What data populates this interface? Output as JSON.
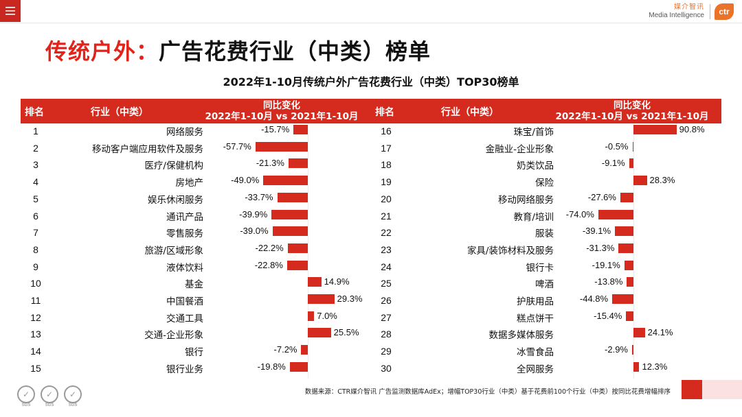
{
  "brand": {
    "cn": "媒介智讯",
    "en": "Media Intelligence",
    "logo": "ctr"
  },
  "page_title": {
    "highlight": "传统户外：",
    "rest": "广告花费行业（中类）榜单"
  },
  "table_headers": {
    "rank": "排名",
    "industry": "行业（中类）",
    "change_line1": "同比变化",
    "change_line2": "2022年1-10月 vs 2021年1-10月"
  },
  "chart_data": {
    "type": "bar",
    "title": "2022年1-10月传统户外广告花费行业（中类）TOP30榜单",
    "unit": "%",
    "columns": [
      {
        "rows": [
          {
            "rank": "1",
            "industry": "网络服务",
            "value": -15.7,
            "label": "-15.7%"
          },
          {
            "rank": "2",
            "industry": "移动客户端应用软件及服务",
            "value": -57.7,
            "label": "-57.7%"
          },
          {
            "rank": "3",
            "industry": "医疗/保健机构",
            "value": -21.3,
            "label": "-21.3%"
          },
          {
            "rank": "4",
            "industry": "房地产",
            "value": -49.0,
            "label": "-49.0%"
          },
          {
            "rank": "5",
            "industry": "娱乐休闲服务",
            "value": -33.7,
            "label": "-33.7%"
          },
          {
            "rank": "6",
            "industry": "通讯产品",
            "value": -39.9,
            "label": "-39.9%"
          },
          {
            "rank": "7",
            "industry": "零售服务",
            "value": -39.0,
            "label": "-39.0%"
          },
          {
            "rank": "8",
            "industry": "旅游/区域形象",
            "value": -22.2,
            "label": "-22.2%"
          },
          {
            "rank": "9",
            "industry": "液体饮料",
            "value": -22.8,
            "label": "-22.8%"
          },
          {
            "rank": "10",
            "industry": "基金",
            "value": 14.9,
            "label": "14.9%"
          },
          {
            "rank": "11",
            "industry": "中国餐酒",
            "value": 29.3,
            "label": "29.3%"
          },
          {
            "rank": "12",
            "industry": "交通工具",
            "value": 7.0,
            "label": "7.0%"
          },
          {
            "rank": "13",
            "industry": "交通-企业形象",
            "value": 25.5,
            "label": "25.5%"
          },
          {
            "rank": "14",
            "industry": "银行",
            "value": -7.2,
            "label": "-7.2%"
          },
          {
            "rank": "15",
            "industry": "银行业务",
            "value": -19.8,
            "label": "-19.8%"
          }
        ]
      },
      {
        "rows": [
          {
            "rank": "16",
            "industry": "珠宝/首饰",
            "value": 90.8,
            "label": "90.8%"
          },
          {
            "rank": "17",
            "industry": "金融业-企业形象",
            "value": -0.5,
            "label": "-0.5%"
          },
          {
            "rank": "18",
            "industry": "奶类饮品",
            "value": -9.1,
            "label": "-9.1%"
          },
          {
            "rank": "19",
            "industry": "保险",
            "value": 28.3,
            "label": "28.3%"
          },
          {
            "rank": "20",
            "industry": "移动网络服务",
            "value": -27.6,
            "label": "-27.6%"
          },
          {
            "rank": "21",
            "industry": "教育/培训",
            "value": -74.0,
            "label": "-74.0%"
          },
          {
            "rank": "22",
            "industry": "服装",
            "value": -39.1,
            "label": "-39.1%"
          },
          {
            "rank": "23",
            "industry": "家具/装饰材料及服务",
            "value": -31.3,
            "label": "-31.3%"
          },
          {
            "rank": "24",
            "industry": "银行卡",
            "value": -19.1,
            "label": "-19.1%"
          },
          {
            "rank": "25",
            "industry": "啤酒",
            "value": -13.8,
            "label": "-13.8%"
          },
          {
            "rank": "26",
            "industry": "护肤用品",
            "value": -44.8,
            "label": "-44.8%"
          },
          {
            "rank": "27",
            "industry": "糕点饼干",
            "value": -15.4,
            "label": "-15.4%"
          },
          {
            "rank": "28",
            "industry": "数据多媒体服务",
            "value": 24.1,
            "label": "24.1%"
          },
          {
            "rank": "29",
            "industry": "冰雪食品",
            "value": -2.9,
            "label": "-2.9%"
          },
          {
            "rank": "30",
            "industry": "全网服务",
            "value": 12.3,
            "label": "12.3%"
          }
        ]
      }
    ],
    "bar_color": "#d52b1e"
  },
  "source": "数据来源：CTR媒介智讯 广告监测数据库AdEx；增幅TOP30行业（中类）基于花费前100个行业（中类）按同比花费增幅排序",
  "footer_logos": [
    "SGS",
    "SGS",
    "SGS"
  ],
  "colors": {
    "accent": "#d52b1e",
    "brand_orange": "#e9732a",
    "title_red": "#e2231a"
  }
}
